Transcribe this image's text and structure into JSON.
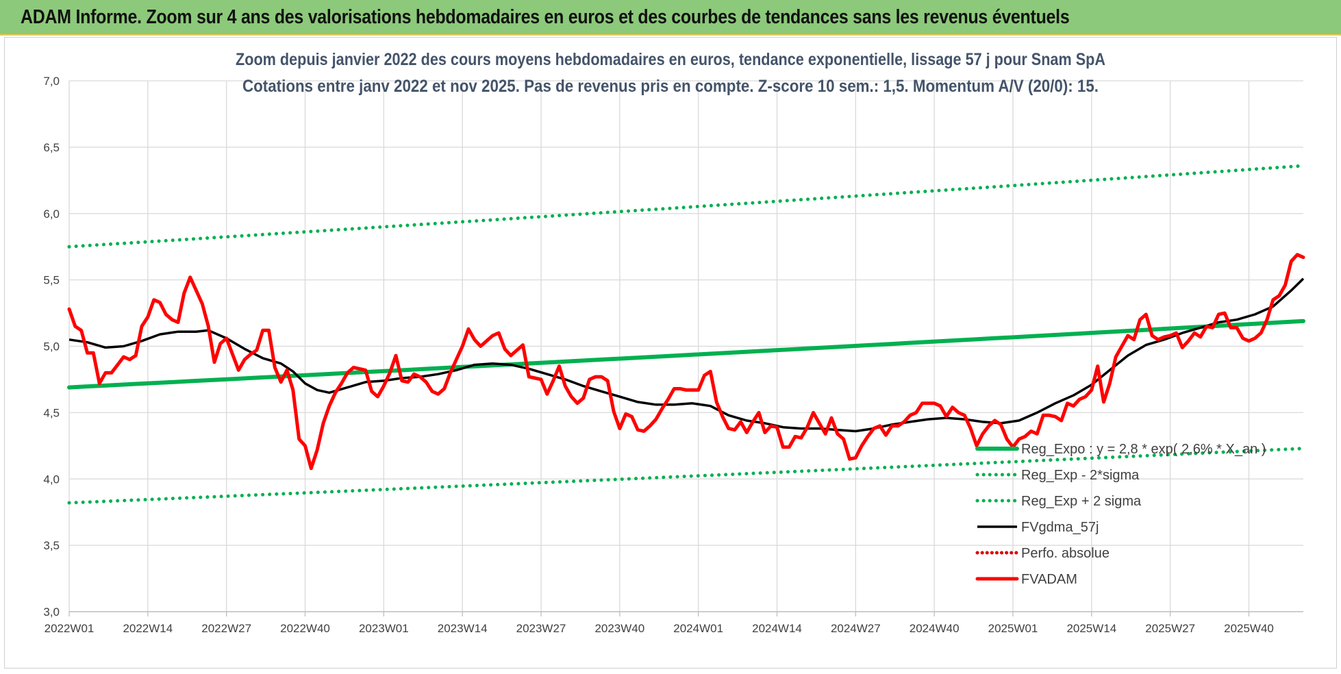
{
  "banner_title": "ADAM Informe. Zoom sur 4 ans des valorisations hebdomadaires en euros et des courbes de tendances sans les revenus éventuels",
  "chart_data": {
    "type": "line",
    "title": "",
    "subtitle_lines": [
      "Zoom depuis janvier 2022 des cours moyens hebdomadaires en euros, tendance exponentielle, lissage 57 j pour Snam SpA",
      "Cotations entre janv 2022 et nov 2025. Pas de revenus pris en compte. Z-score 10 sem.: 1,5. Momentum A/V (20/0): 15."
    ],
    "xlabel": "",
    "ylabel": "",
    "ylim": [
      3.0,
      7.0
    ],
    "y_ticks": [
      "3,0",
      "3,5",
      "4,0",
      "4,5",
      "5,0",
      "5,5",
      "6,0",
      "6,5",
      "7,0"
    ],
    "x_tick_labels": [
      "2022W01",
      "2022W14",
      "2022W27",
      "2022W40",
      "2023W01",
      "2023W14",
      "2023W27",
      "2023W40",
      "2024W01",
      "2024W14",
      "2024W27",
      "2024W40",
      "2025W01",
      "2025W14",
      "2025W27",
      "2025W40"
    ],
    "x_tick_index": [
      0,
      13,
      26,
      39,
      52,
      65,
      78,
      91,
      104,
      117,
      130,
      143,
      156,
      169,
      182,
      195
    ],
    "n_weeks": 205,
    "grid": true,
    "legend_position": "bottom-right",
    "series": [
      {
        "name": "Reg_Expo : y = 2,8 * exp( 2,6% * X_an )",
        "style": "thick",
        "color": "#00b050",
        "points": [
          [
            0,
            4.69
          ],
          [
            204,
            5.19
          ]
        ]
      },
      {
        "name": "Reg_Exp - 2*sigma",
        "style": "dotted",
        "color": "#00b050",
        "points": [
          [
            0,
            3.82
          ],
          [
            204,
            4.23
          ]
        ]
      },
      {
        "name": "Reg_Exp + 2 sigma",
        "style": "dotted",
        "color": "#00b050",
        "points": [
          [
            0,
            5.75
          ],
          [
            204,
            6.36
          ]
        ]
      },
      {
        "name": "FVgdma_57j",
        "style": "solid",
        "color": "#000000",
        "points": [
          [
            0,
            5.05
          ],
          [
            3,
            5.03
          ],
          [
            6,
            4.99
          ],
          [
            9,
            5.0
          ],
          [
            12,
            5.04
          ],
          [
            15,
            5.09
          ],
          [
            18,
            5.11
          ],
          [
            21,
            5.11
          ],
          [
            23,
            5.12
          ],
          [
            26,
            5.06
          ],
          [
            29,
            4.98
          ],
          [
            32,
            4.91
          ],
          [
            35,
            4.87
          ],
          [
            37,
            4.81
          ],
          [
            39,
            4.72
          ],
          [
            41,
            4.67
          ],
          [
            43,
            4.65
          ],
          [
            46,
            4.69
          ],
          [
            49,
            4.73
          ],
          [
            52,
            4.74
          ],
          [
            55,
            4.76
          ],
          [
            58,
            4.77
          ],
          [
            61,
            4.79
          ],
          [
            64,
            4.82
          ],
          [
            67,
            4.86
          ],
          [
            70,
            4.87
          ],
          [
            73,
            4.86
          ],
          [
            76,
            4.83
          ],
          [
            79,
            4.79
          ],
          [
            82,
            4.75
          ],
          [
            85,
            4.7
          ],
          [
            88,
            4.66
          ],
          [
            91,
            4.62
          ],
          [
            94,
            4.58
          ],
          [
            97,
            4.56
          ],
          [
            100,
            4.56
          ],
          [
            103,
            4.57
          ],
          [
            106,
            4.55
          ],
          [
            109,
            4.48
          ],
          [
            112,
            4.44
          ],
          [
            115,
            4.42
          ],
          [
            118,
            4.39
          ],
          [
            121,
            4.38
          ],
          [
            124,
            4.38
          ],
          [
            127,
            4.37
          ],
          [
            130,
            4.36
          ],
          [
            133,
            4.38
          ],
          [
            136,
            4.41
          ],
          [
            139,
            4.43
          ],
          [
            142,
            4.45
          ],
          [
            145,
            4.46
          ],
          [
            148,
            4.45
          ],
          [
            151,
            4.43
          ],
          [
            154,
            4.42
          ],
          [
            157,
            4.44
          ],
          [
            160,
            4.5
          ],
          [
            163,
            4.57
          ],
          [
            166,
            4.63
          ],
          [
            169,
            4.71
          ],
          [
            172,
            4.82
          ],
          [
            175,
            4.93
          ],
          [
            178,
            5.01
          ],
          [
            181,
            5.05
          ],
          [
            184,
            5.1
          ],
          [
            187,
            5.14
          ],
          [
            190,
            5.18
          ],
          [
            193,
            5.2
          ],
          [
            196,
            5.24
          ],
          [
            199,
            5.3
          ],
          [
            202,
            5.42
          ],
          [
            204,
            5.51
          ]
        ]
      },
      {
        "name": "Perfo. absolue",
        "style": "dotted",
        "color": "#e00000",
        "points": []
      },
      {
        "name": "FVADAM",
        "style": "thick",
        "color": "#ff0000",
        "points": [
          [
            0,
            5.28
          ],
          [
            1,
            5.15
          ],
          [
            2,
            5.12
          ],
          [
            3,
            4.95
          ],
          [
            4,
            4.95
          ],
          [
            5,
            4.72
          ],
          [
            6,
            4.8
          ],
          [
            7,
            4.8
          ],
          [
            8,
            4.86
          ],
          [
            9,
            4.92
          ],
          [
            10,
            4.9
          ],
          [
            11,
            4.93
          ],
          [
            12,
            5.15
          ],
          [
            13,
            5.22
          ],
          [
            14,
            5.35
          ],
          [
            15,
            5.33
          ],
          [
            16,
            5.24
          ],
          [
            17,
            5.2
          ],
          [
            18,
            5.18
          ],
          [
            19,
            5.4
          ],
          [
            20,
            5.52
          ],
          [
            21,
            5.42
          ],
          [
            22,
            5.32
          ],
          [
            23,
            5.15
          ],
          [
            24,
            4.88
          ],
          [
            25,
            5.02
          ],
          [
            26,
            5.06
          ],
          [
            27,
            4.94
          ],
          [
            28,
            4.82
          ],
          [
            29,
            4.9
          ],
          [
            30,
            4.94
          ],
          [
            31,
            4.97
          ],
          [
            32,
            5.12
          ],
          [
            33,
            5.12
          ],
          [
            34,
            4.84
          ],
          [
            35,
            4.73
          ],
          [
            36,
            4.82
          ],
          [
            37,
            4.67
          ],
          [
            38,
            4.3
          ],
          [
            39,
            4.25
          ],
          [
            40,
            4.08
          ],
          [
            41,
            4.22
          ],
          [
            42,
            4.42
          ],
          [
            43,
            4.55
          ],
          [
            44,
            4.65
          ],
          [
            45,
            4.72
          ],
          [
            46,
            4.8
          ],
          [
            47,
            4.84
          ],
          [
            48,
            4.83
          ],
          [
            49,
            4.82
          ],
          [
            50,
            4.66
          ],
          [
            51,
            4.62
          ],
          [
            52,
            4.7
          ],
          [
            53,
            4.8
          ],
          [
            54,
            4.93
          ],
          [
            55,
            4.74
          ],
          [
            56,
            4.73
          ],
          [
            57,
            4.79
          ],
          [
            58,
            4.77
          ],
          [
            59,
            4.73
          ],
          [
            60,
            4.66
          ],
          [
            61,
            4.64
          ],
          [
            62,
            4.68
          ],
          [
            63,
            4.8
          ],
          [
            64,
            4.9
          ],
          [
            65,
            5.0
          ],
          [
            66,
            5.13
          ],
          [
            67,
            5.05
          ],
          [
            68,
            5.0
          ],
          [
            69,
            5.04
          ],
          [
            70,
            5.08
          ],
          [
            71,
            5.1
          ],
          [
            72,
            4.98
          ],
          [
            73,
            4.93
          ],
          [
            74,
            4.97
          ],
          [
            75,
            5.01
          ],
          [
            76,
            4.77
          ],
          [
            77,
            4.76
          ],
          [
            78,
            4.75
          ],
          [
            79,
            4.64
          ],
          [
            80,
            4.74
          ],
          [
            81,
            4.85
          ],
          [
            82,
            4.7
          ],
          [
            83,
            4.62
          ],
          [
            84,
            4.57
          ],
          [
            85,
            4.61
          ],
          [
            86,
            4.75
          ],
          [
            87,
            4.77
          ],
          [
            88,
            4.77
          ],
          [
            89,
            4.74
          ],
          [
            90,
            4.51
          ],
          [
            91,
            4.38
          ],
          [
            92,
            4.49
          ],
          [
            93,
            4.47
          ],
          [
            94,
            4.37
          ],
          [
            95,
            4.36
          ],
          [
            96,
            4.4
          ],
          [
            97,
            4.45
          ],
          [
            98,
            4.53
          ],
          [
            99,
            4.6
          ],
          [
            100,
            4.68
          ],
          [
            101,
            4.68
          ],
          [
            102,
            4.67
          ],
          [
            103,
            4.67
          ],
          [
            104,
            4.67
          ],
          [
            105,
            4.78
          ],
          [
            106,
            4.81
          ],
          [
            107,
            4.58
          ],
          [
            108,
            4.47
          ],
          [
            109,
            4.38
          ],
          [
            110,
            4.37
          ],
          [
            111,
            4.43
          ],
          [
            112,
            4.35
          ],
          [
            113,
            4.43
          ],
          [
            114,
            4.5
          ],
          [
            115,
            4.35
          ],
          [
            116,
            4.4
          ],
          [
            117,
            4.39
          ],
          [
            118,
            4.24
          ],
          [
            119,
            4.24
          ],
          [
            120,
            4.32
          ],
          [
            121,
            4.31
          ],
          [
            122,
            4.39
          ],
          [
            123,
            4.5
          ],
          [
            124,
            4.42
          ],
          [
            125,
            4.34
          ],
          [
            126,
            4.46
          ],
          [
            127,
            4.34
          ],
          [
            128,
            4.3
          ],
          [
            129,
            4.15
          ],
          [
            130,
            4.16
          ],
          [
            131,
            4.25
          ],
          [
            132,
            4.32
          ],
          [
            133,
            4.38
          ],
          [
            134,
            4.4
          ],
          [
            135,
            4.33
          ],
          [
            136,
            4.4
          ],
          [
            137,
            4.4
          ],
          [
            138,
            4.43
          ],
          [
            139,
            4.48
          ],
          [
            140,
            4.5
          ],
          [
            141,
            4.57
          ],
          [
            142,
            4.57
          ],
          [
            143,
            4.57
          ],
          [
            144,
            4.55
          ],
          [
            145,
            4.47
          ],
          [
            146,
            4.54
          ],
          [
            147,
            4.5
          ],
          [
            148,
            4.48
          ],
          [
            149,
            4.38
          ],
          [
            150,
            4.25
          ],
          [
            151,
            4.34
          ],
          [
            152,
            4.4
          ],
          [
            153,
            4.44
          ],
          [
            154,
            4.41
          ],
          [
            155,
            4.3
          ],
          [
            156,
            4.24
          ],
          [
            157,
            4.3
          ],
          [
            158,
            4.32
          ],
          [
            159,
            4.36
          ],
          [
            160,
            4.34
          ],
          [
            161,
            4.48
          ],
          [
            162,
            4.48
          ],
          [
            163,
            4.47
          ],
          [
            164,
            4.44
          ],
          [
            165,
            4.57
          ],
          [
            166,
            4.55
          ],
          [
            167,
            4.6
          ],
          [
            168,
            4.62
          ],
          [
            169,
            4.67
          ],
          [
            170,
            4.85
          ],
          [
            171,
            4.58
          ],
          [
            172,
            4.72
          ],
          [
            173,
            4.92
          ],
          [
            174,
            5.0
          ],
          [
            175,
            5.08
          ],
          [
            176,
            5.05
          ],
          [
            177,
            5.2
          ],
          [
            178,
            5.24
          ],
          [
            179,
            5.08
          ],
          [
            180,
            5.05
          ],
          [
            181,
            5.07
          ],
          [
            182,
            5.08
          ],
          [
            183,
            5.1
          ],
          [
            184,
            4.99
          ],
          [
            185,
            5.04
          ],
          [
            186,
            5.1
          ],
          [
            187,
            5.07
          ],
          [
            188,
            5.15
          ],
          [
            189,
            5.14
          ],
          [
            190,
            5.24
          ],
          [
            191,
            5.25
          ],
          [
            192,
            5.14
          ],
          [
            193,
            5.14
          ],
          [
            194,
            5.06
          ],
          [
            195,
            5.04
          ],
          [
            196,
            5.06
          ],
          [
            197,
            5.1
          ],
          [
            198,
            5.2
          ],
          [
            199,
            5.35
          ],
          [
            200,
            5.38
          ],
          [
            201,
            5.46
          ],
          [
            202,
            5.64
          ],
          [
            203,
            5.69
          ],
          [
            204,
            5.67
          ]
        ]
      }
    ]
  }
}
